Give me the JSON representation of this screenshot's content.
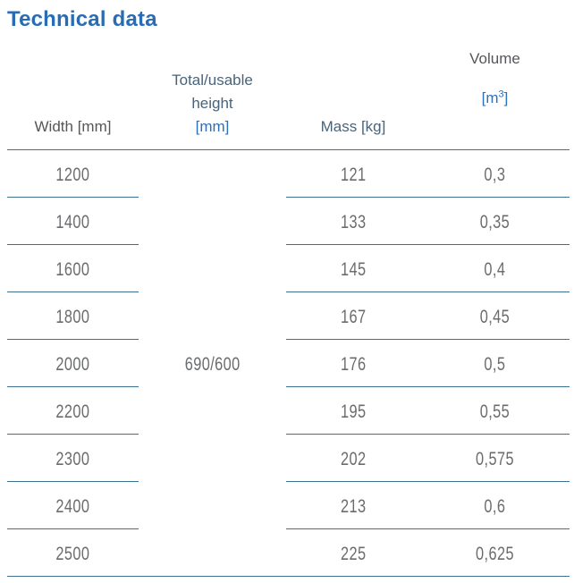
{
  "title": "Technical data",
  "table": {
    "columns": {
      "width": {
        "label": "Width [mm]"
      },
      "height": {
        "line1": "Total/usable",
        "line2": "height",
        "unit": "[mm]"
      },
      "mass": {
        "label": "Mass [kg]"
      },
      "volume": {
        "label": "Volume",
        "unit_pre": "[m",
        "unit_sup": "3",
        "unit_post": "]"
      }
    },
    "merged_height_value": "690/600",
    "rows": [
      {
        "width": "1200",
        "mass": "121",
        "volume": "0,3"
      },
      {
        "width": "1400",
        "mass": "133",
        "volume": "0,35"
      },
      {
        "width": "1600",
        "mass": "145",
        "volume": "0,4"
      },
      {
        "width": "1800",
        "mass": "167",
        "volume": "0,45"
      },
      {
        "width": "2000",
        "mass": "176",
        "volume": "0,5"
      },
      {
        "width": "2200",
        "mass": "195",
        "volume": "0,55"
      },
      {
        "width": "2300",
        "mass": "202",
        "volume": "0,575"
      },
      {
        "width": "2400",
        "mass": "213",
        "volume": "0,6"
      },
      {
        "width": "2500",
        "mass": "225",
        "volume": "0,625"
      }
    ]
  },
  "colors": {
    "title_blue": "#2a6cb4",
    "unit_blue": "#2f6fb6",
    "header_bluegray": "#4a6378",
    "header_gray": "#55565a",
    "number_gray": "#6b6c6e",
    "rule_blue": "#3e7090"
  }
}
